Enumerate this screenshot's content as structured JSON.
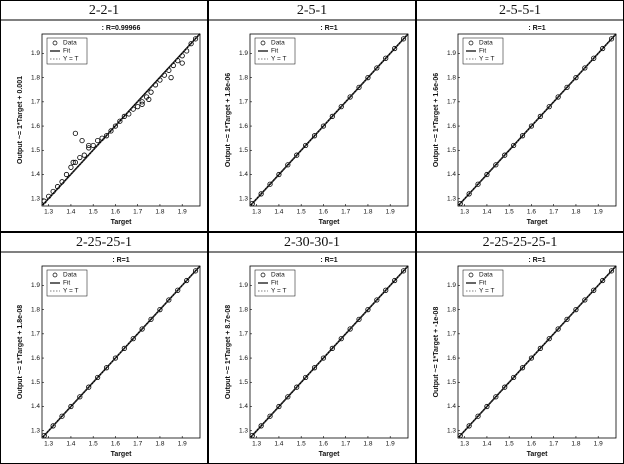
{
  "chart_data": [
    {
      "type": "scatter",
      "panel_label": "2-2-1",
      "title": ": R=0.99966",
      "xlabel": "Target",
      "ylabel": "Output ~= 1*Target + 0.001",
      "xlim": [
        1.27,
        1.98
      ],
      "ylim": [
        1.27,
        1.98
      ],
      "xticks": [
        1.3,
        1.4,
        1.5,
        1.6,
        1.7,
        1.8,
        1.9
      ],
      "yticks": [
        1.3,
        1.4,
        1.5,
        1.6,
        1.7,
        1.8,
        1.9
      ],
      "legend": "upper left",
      "series": [
        {
          "name": "Data",
          "color": "#000000",
          "marker": "circle",
          "x": [
            1.28,
            1.3,
            1.32,
            1.34,
            1.36,
            1.38,
            1.4,
            1.42,
            1.44,
            1.46,
            1.48,
            1.5,
            1.52,
            1.54,
            1.56,
            1.58,
            1.6,
            1.62,
            1.64,
            1.66,
            1.68,
            1.7,
            1.72,
            1.74,
            1.76,
            1.78,
            1.8,
            1.82,
            1.84,
            1.86,
            1.88,
            1.9,
            1.92,
            1.94,
            1.96,
            1.41,
            1.45,
            1.48,
            1.72,
            1.75,
            1.85,
            1.9,
            1.42
          ],
          "values": [
            1.29,
            1.31,
            1.33,
            1.35,
            1.37,
            1.4,
            1.43,
            1.45,
            1.47,
            1.48,
            1.51,
            1.52,
            1.54,
            1.55,
            1.56,
            1.58,
            1.6,
            1.62,
            1.64,
            1.65,
            1.67,
            1.68,
            1.7,
            1.72,
            1.74,
            1.77,
            1.79,
            1.81,
            1.83,
            1.85,
            1.87,
            1.89,
            1.91,
            1.94,
            1.96,
            1.45,
            1.54,
            1.52,
            1.69,
            1.71,
            1.8,
            1.86,
            1.57
          ]
        },
        {
          "name": "Fit",
          "color": "#000000",
          "line_style": "solid",
          "x": [
            1.27,
            1.98
          ],
          "values": [
            1.271,
            1.981
          ]
        },
        {
          "name": "Y = T",
          "color": "#555555",
          "line_style": "dotted",
          "x": [
            1.27,
            1.98
          ],
          "values": [
            1.27,
            1.98
          ]
        }
      ]
    },
    {
      "type": "scatter",
      "panel_label": "2-5-1",
      "title": ": R=1",
      "xlabel": "Target",
      "ylabel": "Output ~= 1*Target + 1.8e-06",
      "xlim": [
        1.27,
        1.98
      ],
      "ylim": [
        1.27,
        1.98
      ],
      "xticks": [
        1.3,
        1.4,
        1.5,
        1.6,
        1.7,
        1.8,
        1.9
      ],
      "yticks": [
        1.3,
        1.4,
        1.5,
        1.6,
        1.7,
        1.8,
        1.9
      ],
      "legend": "upper left",
      "series": [
        {
          "name": "Data",
          "color": "#000000",
          "marker": "circle",
          "x": [
            1.28,
            1.32,
            1.36,
            1.4,
            1.44,
            1.48,
            1.52,
            1.56,
            1.6,
            1.64,
            1.68,
            1.72,
            1.76,
            1.8,
            1.84,
            1.88,
            1.92,
            1.96
          ],
          "values": [
            1.28,
            1.32,
            1.36,
            1.4,
            1.44,
            1.48,
            1.52,
            1.56,
            1.6,
            1.64,
            1.68,
            1.72,
            1.76,
            1.8,
            1.84,
            1.88,
            1.92,
            1.96
          ]
        },
        {
          "name": "Fit",
          "color": "#000000",
          "line_style": "solid",
          "x": [
            1.27,
            1.98
          ],
          "values": [
            1.27,
            1.98
          ]
        },
        {
          "name": "Y = T",
          "color": "#555555",
          "line_style": "dotted",
          "x": [
            1.27,
            1.98
          ],
          "values": [
            1.27,
            1.98
          ]
        }
      ]
    },
    {
      "type": "scatter",
      "panel_label": "2-5-5-1",
      "title": ": R=1",
      "xlabel": "Target",
      "ylabel": "Output ~= 1*Target + 1.6e-06",
      "xlim": [
        1.27,
        1.98
      ],
      "ylim": [
        1.27,
        1.98
      ],
      "xticks": [
        1.3,
        1.4,
        1.5,
        1.6,
        1.7,
        1.8,
        1.9
      ],
      "yticks": [
        1.3,
        1.4,
        1.5,
        1.6,
        1.7,
        1.8,
        1.9
      ],
      "legend": "upper left",
      "series": [
        {
          "name": "Data",
          "color": "#000000",
          "marker": "circle",
          "x": [
            1.28,
            1.32,
            1.36,
            1.4,
            1.44,
            1.48,
            1.52,
            1.56,
            1.6,
            1.64,
            1.68,
            1.72,
            1.76,
            1.8,
            1.84,
            1.88,
            1.92,
            1.96
          ],
          "values": [
            1.28,
            1.32,
            1.36,
            1.4,
            1.44,
            1.48,
            1.52,
            1.56,
            1.6,
            1.64,
            1.68,
            1.72,
            1.76,
            1.8,
            1.84,
            1.88,
            1.92,
            1.96
          ]
        },
        {
          "name": "Fit",
          "color": "#000000",
          "line_style": "solid",
          "x": [
            1.27,
            1.98
          ],
          "values": [
            1.27,
            1.98
          ]
        },
        {
          "name": "Y = T",
          "color": "#555555",
          "line_style": "dotted",
          "x": [
            1.27,
            1.98
          ],
          "values": [
            1.27,
            1.98
          ]
        }
      ]
    },
    {
      "type": "scatter",
      "panel_label": "2-25-25-1",
      "title": ": R=1",
      "xlabel": "Target",
      "ylabel": "Output ~= 1*Target + 1.8e-08",
      "xlim": [
        1.27,
        1.98
      ],
      "ylim": [
        1.27,
        1.98
      ],
      "xticks": [
        1.3,
        1.4,
        1.5,
        1.6,
        1.7,
        1.8,
        1.9
      ],
      "yticks": [
        1.3,
        1.4,
        1.5,
        1.6,
        1.7,
        1.8,
        1.9
      ],
      "legend": "upper left",
      "series": [
        {
          "name": "Data",
          "color": "#000000",
          "marker": "circle",
          "x": [
            1.28,
            1.32,
            1.36,
            1.4,
            1.44,
            1.48,
            1.52,
            1.56,
            1.6,
            1.64,
            1.68,
            1.72,
            1.76,
            1.8,
            1.84,
            1.88,
            1.92,
            1.96
          ],
          "values": [
            1.28,
            1.32,
            1.36,
            1.4,
            1.44,
            1.48,
            1.52,
            1.56,
            1.6,
            1.64,
            1.68,
            1.72,
            1.76,
            1.8,
            1.84,
            1.88,
            1.92,
            1.96
          ]
        },
        {
          "name": "Fit",
          "color": "#000000",
          "line_style": "solid",
          "x": [
            1.27,
            1.98
          ],
          "values": [
            1.27,
            1.98
          ]
        },
        {
          "name": "Y = T",
          "color": "#555555",
          "line_style": "dotted",
          "x": [
            1.27,
            1.98
          ],
          "values": [
            1.27,
            1.98
          ]
        }
      ]
    },
    {
      "type": "scatter",
      "panel_label": "2-30-30-1",
      "title": ": R=1",
      "xlabel": "Target",
      "ylabel": "Output ~= 1*Target + 8.7e-08",
      "xlim": [
        1.27,
        1.98
      ],
      "ylim": [
        1.27,
        1.98
      ],
      "xticks": [
        1.3,
        1.4,
        1.5,
        1.6,
        1.7,
        1.8,
        1.9
      ],
      "yticks": [
        1.3,
        1.4,
        1.5,
        1.6,
        1.7,
        1.8,
        1.9
      ],
      "legend": "upper left",
      "series": [
        {
          "name": "Data",
          "color": "#000000",
          "marker": "circle",
          "x": [
            1.28,
            1.32,
            1.36,
            1.4,
            1.44,
            1.48,
            1.52,
            1.56,
            1.6,
            1.64,
            1.68,
            1.72,
            1.76,
            1.8,
            1.84,
            1.88,
            1.92,
            1.96
          ],
          "values": [
            1.28,
            1.32,
            1.36,
            1.4,
            1.44,
            1.48,
            1.52,
            1.56,
            1.6,
            1.64,
            1.68,
            1.72,
            1.76,
            1.8,
            1.84,
            1.88,
            1.92,
            1.96
          ]
        },
        {
          "name": "Fit",
          "color": "#000000",
          "line_style": "solid",
          "x": [
            1.27,
            1.98
          ],
          "values": [
            1.27,
            1.98
          ]
        },
        {
          "name": "Y = T",
          "color": "#555555",
          "line_style": "dotted",
          "x": [
            1.27,
            1.98
          ],
          "values": [
            1.27,
            1.98
          ]
        }
      ]
    },
    {
      "type": "scatter",
      "panel_label": "2-25-25-25-1",
      "title": ": R=1",
      "xlabel": "Target",
      "ylabel": "Output ~= 1*Target + -1e-08",
      "xlim": [
        1.27,
        1.98
      ],
      "ylim": [
        1.27,
        1.98
      ],
      "xticks": [
        1.3,
        1.4,
        1.5,
        1.6,
        1.7,
        1.8,
        1.9
      ],
      "yticks": [
        1.3,
        1.4,
        1.5,
        1.6,
        1.7,
        1.8,
        1.9
      ],
      "legend": "upper left",
      "series": [
        {
          "name": "Data",
          "color": "#000000",
          "marker": "circle",
          "x": [
            1.28,
            1.32,
            1.36,
            1.4,
            1.44,
            1.48,
            1.52,
            1.56,
            1.6,
            1.64,
            1.68,
            1.72,
            1.76,
            1.8,
            1.84,
            1.88,
            1.92,
            1.96
          ],
          "values": [
            1.28,
            1.32,
            1.36,
            1.4,
            1.44,
            1.48,
            1.52,
            1.56,
            1.6,
            1.64,
            1.68,
            1.72,
            1.76,
            1.8,
            1.84,
            1.88,
            1.92,
            1.96
          ]
        },
        {
          "name": "Fit",
          "color": "#000000",
          "line_style": "solid",
          "x": [
            1.27,
            1.98
          ],
          "values": [
            1.27,
            1.98
          ]
        },
        {
          "name": "Y = T",
          "color": "#555555",
          "line_style": "dotted",
          "x": [
            1.27,
            1.98
          ],
          "values": [
            1.27,
            1.98
          ]
        }
      ]
    }
  ]
}
